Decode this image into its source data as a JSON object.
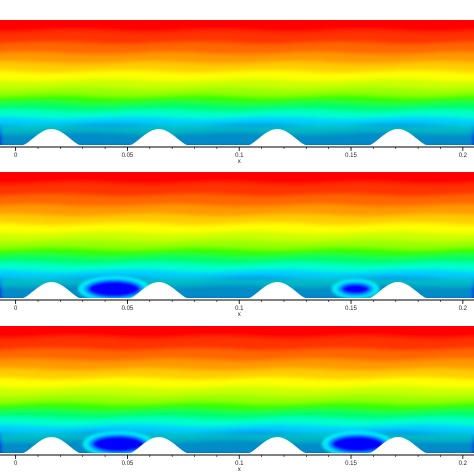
{
  "chart_data": [
    {
      "type": "heatmap",
      "panel": "top",
      "xlabel": "x",
      "xlim": [
        -0.007,
        0.205
      ],
      "xticks": [
        0,
        0.05,
        0.1,
        0.15,
        0.2
      ],
      "xtick_labels": [
        "0",
        "0.05",
        "0.1",
        "0.15",
        "0.2"
      ],
      "colormap": [
        "#0000ff",
        "#0066ff",
        "#00ccff",
        "#00ffcc",
        "#00ff66",
        "#33ff00",
        "#99ff00",
        "#ccff00",
        "#ffff00",
        "#ffcc00",
        "#ff9900",
        "#ff6600",
        "#ff3300",
        "#ff0000"
      ],
      "surface_bumps_x": [
        0.016,
        0.064,
        0.117,
        0.171
      ],
      "low_value_regions": []
    },
    {
      "type": "heatmap",
      "panel": "middle",
      "xlabel": "x",
      "xlim": [
        -0.007,
        0.205
      ],
      "xticks": [
        0,
        0.05,
        0.1,
        0.15,
        0.2
      ],
      "xtick_labels": [
        "0",
        "0.05",
        "0.1",
        "0.15",
        "0.2"
      ],
      "colormap": [
        "#0000ff",
        "#0066ff",
        "#00ccff",
        "#00ffcc",
        "#00ff66",
        "#33ff00",
        "#99ff00",
        "#ccff00",
        "#ffff00",
        "#ffcc00",
        "#ff9900",
        "#ff6600",
        "#ff3300",
        "#ff0000"
      ],
      "surface_bumps_x": [
        0.016,
        0.064,
        0.117,
        0.171
      ],
      "low_value_regions": [
        {
          "x": 0.044,
          "strength": "strong"
        },
        {
          "x": 0.152,
          "strength": "weak"
        }
      ]
    },
    {
      "type": "heatmap",
      "panel": "bottom",
      "xlabel": "x",
      "xlim": [
        -0.007,
        0.205
      ],
      "xticks": [
        0,
        0.05,
        0.1,
        0.15,
        0.2
      ],
      "xtick_labels": [
        "0",
        "0.05",
        "0.1",
        "0.15",
        "0.2"
      ],
      "colormap": [
        "#0000ff",
        "#0066ff",
        "#00ccff",
        "#00ffcc",
        "#00ff66",
        "#33ff00",
        "#99ff00",
        "#ccff00",
        "#ffff00",
        "#ffcc00",
        "#ff9900",
        "#ff6600",
        "#ff3300",
        "#ff0000"
      ],
      "surface_bumps_x": [
        0.016,
        0.064,
        0.117,
        0.171
      ],
      "low_value_regions": [
        {
          "x": 0.046,
          "strength": "strong"
        },
        {
          "x": 0.153,
          "strength": "strong"
        }
      ]
    }
  ]
}
